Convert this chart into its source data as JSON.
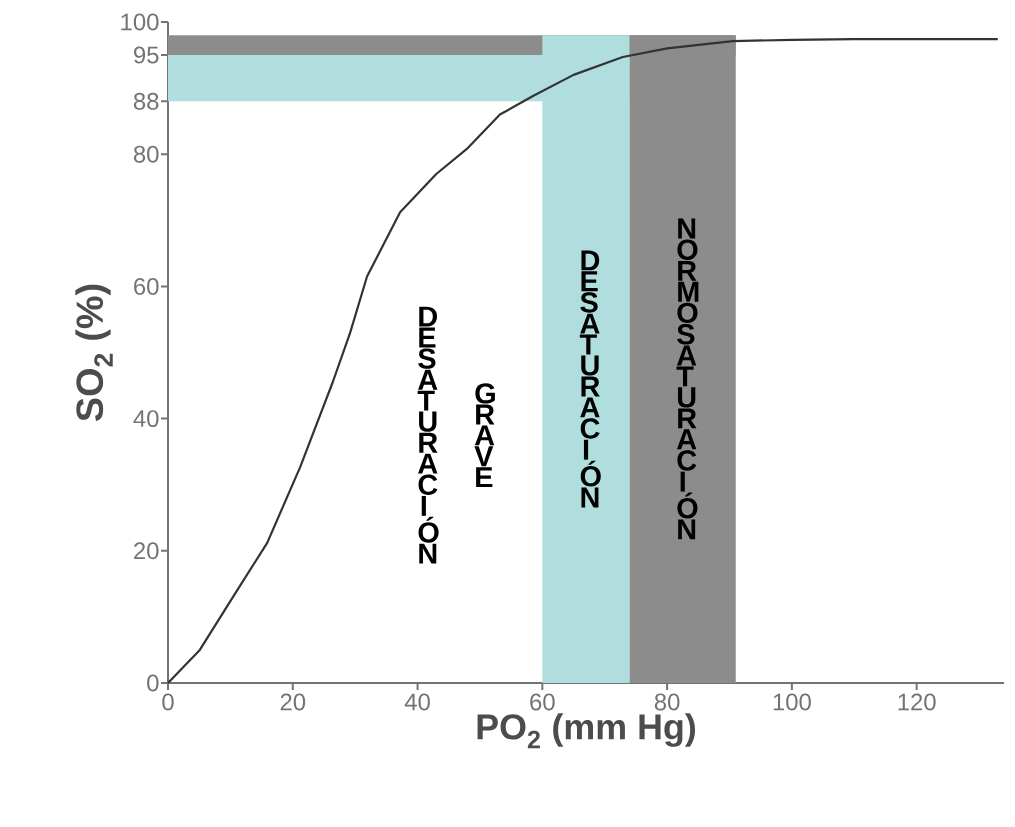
{
  "chart_data": {
    "type": "line",
    "xlabel": "PO$_{2}$ (mm Hg)",
    "ylabel": "SO$_{2}$ (%)",
    "x": [
      0,
      5.1,
      10.4,
      15.9,
      21.2,
      26.4,
      29.2,
      31.9,
      37.2,
      43,
      47.9,
      53.2,
      58.5,
      65,
      72.9,
      80,
      90.5,
      100,
      110,
      120,
      133
    ],
    "series": [
      {
        "color": "#333333",
        "values": [
          0,
          5,
          13,
          21.2,
          32.7,
          45.5,
          53,
          61.5,
          71.2,
          77,
          80.8,
          86,
          88.8,
          92,
          94.7,
          96,
          97.1,
          97.3,
          97.4,
          97.4,
          97.4
        ]
      }
    ],
    "xlim": [
      0,
      134
    ],
    "ylim": [
      0,
      100
    ],
    "xticks": [
      0,
      20,
      40,
      60,
      80,
      100,
      120
    ],
    "yticks": [
      0,
      20,
      40,
      60,
      80,
      88,
      95,
      100
    ],
    "grid": false,
    "marker": "none",
    "line_style": "solid",
    "bands": [
      {
        "axis": "y",
        "from": 88,
        "to": 95,
        "color": "#b0dede"
      },
      {
        "axis": "y",
        "from": 95,
        "to": 98,
        "color": "#8c8c8c"
      },
      {
        "axis": "x",
        "from": 60,
        "to": 74,
        "color": "#b0dede",
        "label": "DESATURACIÓN"
      },
      {
        "axis": "x",
        "from": 74,
        "to": 91,
        "color": "#8c8c8c",
        "label": "NORMOSATURACIÓN"
      }
    ],
    "annotations": [
      "DESATURACIÓN",
      "GRAVE"
    ]
  }
}
